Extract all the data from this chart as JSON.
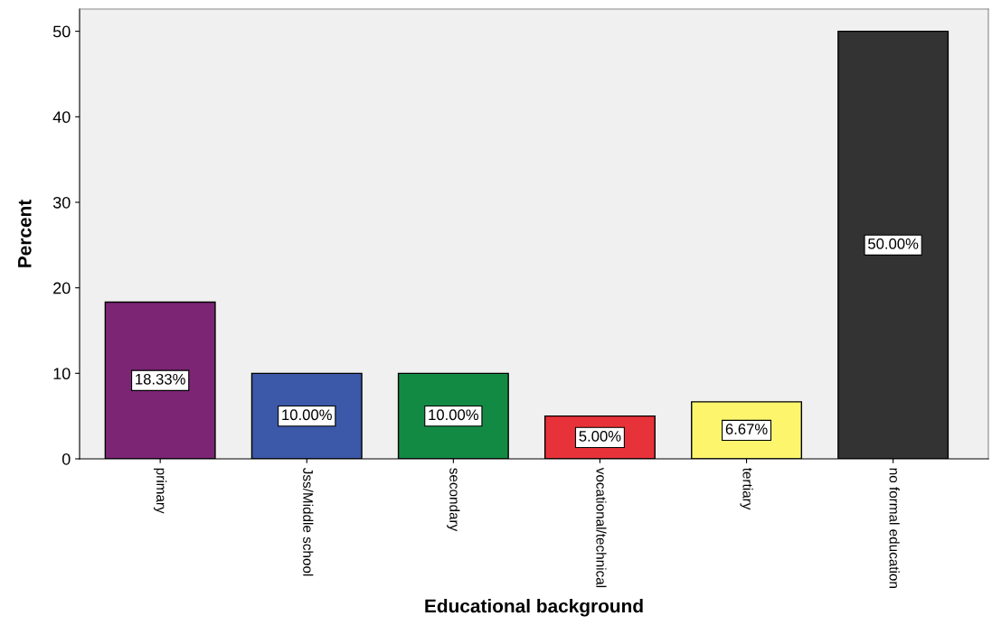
{
  "chart_data": {
    "type": "bar",
    "xlabel": "Educational background",
    "ylabel": "Percent",
    "categories": [
      "primary",
      "Jss/Middle school",
      "secondary",
      "vocational/technical",
      "tertiary",
      "no formal education"
    ],
    "values": [
      18.33,
      10.0,
      10.0,
      5.0,
      6.67,
      50.0
    ],
    "colors": [
      "#7b2574",
      "#3c58a8",
      "#138a44",
      "#e8323a",
      "#fdf66d",
      "#333333"
    ],
    "value_labels": [
      "18.33%",
      "10.00%",
      "10.00%",
      "5.00%",
      "6.67%",
      "50.00%"
    ],
    "ylim": [
      0,
      52.6
    ],
    "yticks": [
      0,
      10,
      20,
      30,
      40,
      50
    ],
    "grid": false,
    "legend": false
  }
}
